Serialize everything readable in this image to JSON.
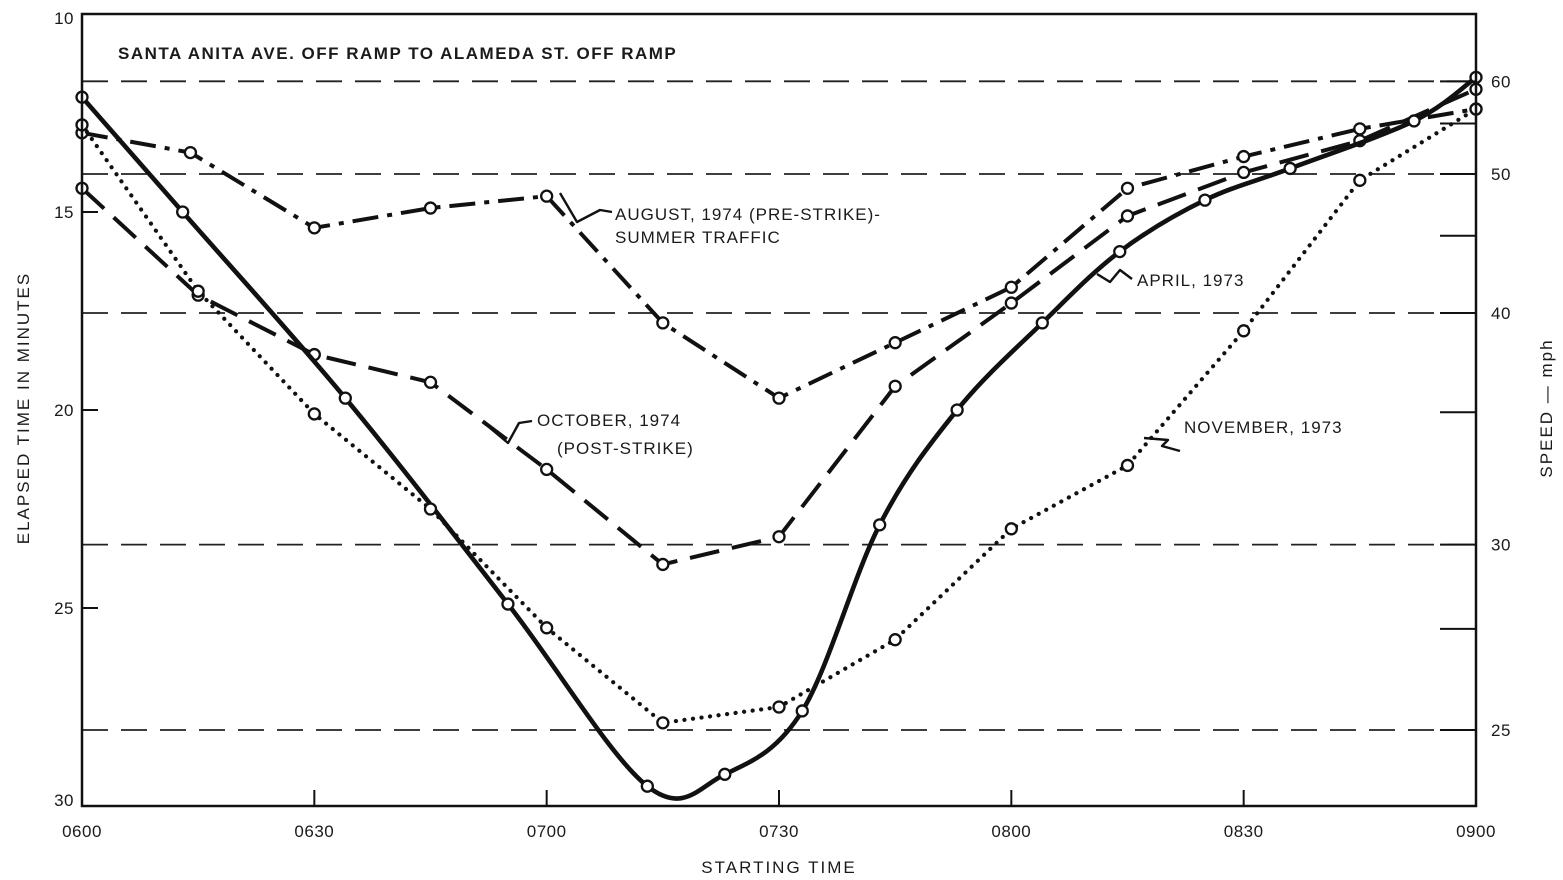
{
  "chart_data": {
    "type": "line",
    "title": "SANTA ANITA AVE. OFF RAMP TO ALAMEDA ST. OFF RAMP",
    "xlabel": "STARTING TIME",
    "ylabel": "ELAPSED TIME IN MINUTES",
    "y2label": "SPEED — mph",
    "xlim": [
      0,
      180
    ],
    "ylim": [
      10,
      30
    ],
    "y_inverted": true,
    "x_ticks": [
      {
        "min": 0,
        "label": "0600"
      },
      {
        "min": 30,
        "label": "0630"
      },
      {
        "min": 60,
        "label": "0700"
      },
      {
        "min": 90,
        "label": "0730"
      },
      {
        "min": 120,
        "label": "0800"
      },
      {
        "min": 150,
        "label": "0830"
      },
      {
        "min": 180,
        "label": "0900"
      }
    ],
    "y_ticks": [
      10,
      15,
      20,
      25,
      30
    ],
    "speed_ticks": [
      {
        "speed": 60,
        "label": "60"
      },
      {
        "speed": 55,
        "label": ""
      },
      {
        "speed": 50,
        "label": "50"
      },
      {
        "speed": 45,
        "label": ""
      },
      {
        "speed": 40,
        "label": "40"
      },
      {
        "speed": 35,
        "label": ""
      },
      {
        "speed": 30,
        "label": "30"
      },
      {
        "speed": 27.5,
        "label": ""
      },
      {
        "speed": 25,
        "label": "25"
      }
    ],
    "speed_gridlines": [
      60,
      50,
      40,
      30,
      25
    ],
    "speed_distance_miles": 11.7,
    "series": [
      {
        "name": "AUGUST, 1974 (PRE-STRIKE)- SUMMER TRAFFIC",
        "style": "dash-dot",
        "x": [
          0,
          14,
          30,
          45,
          60,
          75,
          90,
          105,
          120,
          135,
          150,
          165,
          180
        ],
        "y": [
          13.0,
          13.5,
          15.4,
          14.9,
          14.6,
          17.8,
          19.7,
          18.3,
          16.9,
          14.4,
          13.6,
          12.9,
          12.4
        ]
      },
      {
        "name": "OCTOBER, 1974 (POST-STRIKE)",
        "style": "dashed",
        "x": [
          0,
          15,
          30,
          45,
          60,
          75,
          90,
          105,
          120,
          135,
          150,
          165,
          180
        ],
        "y": [
          14.4,
          17.1,
          18.6,
          19.3,
          21.5,
          23.9,
          23.2,
          19.4,
          17.3,
          15.1,
          14.0,
          13.2,
          11.9
        ]
      },
      {
        "name": "APRIL, 1973",
        "style": "solid",
        "x": [
          0,
          13,
          34,
          55,
          73,
          83,
          93,
          103,
          113,
          124,
          134,
          145,
          156,
          172,
          180
        ],
        "y": [
          12.1,
          15.0,
          19.7,
          24.9,
          29.5,
          29.2,
          27.6,
          22.9,
          20.0,
          17.8,
          16.0,
          14.7,
          13.9,
          12.7,
          11.6
        ]
      },
      {
        "name": "NOVEMBER, 1973",
        "style": "dotted",
        "x": [
          0,
          15,
          30,
          45,
          60,
          75,
          90,
          105,
          120,
          135,
          150,
          165,
          180
        ],
        "y": [
          12.8,
          17.0,
          20.1,
          22.5,
          25.5,
          27.9,
          27.5,
          25.8,
          23.0,
          21.4,
          18.0,
          14.2,
          12.4
        ]
      }
    ],
    "annotations": [
      {
        "lines": [
          "AUGUST, 1974 (PRE-STRIKE)-",
          "SUMMER TRAFFIC"
        ]
      },
      {
        "lines": [
          "OCTOBER, 1974",
          "(POST-STRIKE)"
        ]
      },
      {
        "lines": [
          "APRIL, 1973"
        ]
      },
      {
        "lines": [
          "NOVEMBER, 1973"
        ]
      }
    ]
  }
}
